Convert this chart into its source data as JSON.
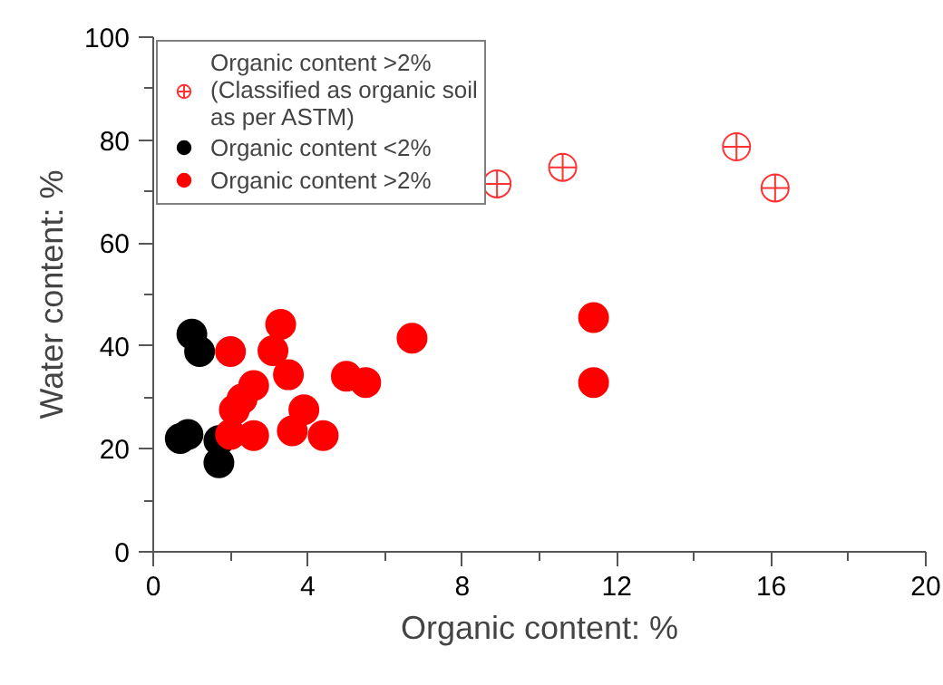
{
  "chart_data": {
    "type": "scatter",
    "xlabel": "Organic content: %",
    "ylabel": "Water content: %",
    "xlim": [
      0,
      20
    ],
    "ylim": [
      0,
      100
    ],
    "xticks": [
      0,
      {
        "value": 2,
        "label": null
      },
      4,
      {
        "value": 6,
        "label": null
      },
      8,
      {
        "value": 10,
        "label": null
      },
      12,
      {
        "value": 14,
        "label": null
      },
      16,
      {
        "value": 18,
        "label": null
      },
      20
    ],
    "yticks": [
      0,
      {
        "value": 10,
        "label": null
      },
      20,
      {
        "value": 30,
        "label": null
      },
      40,
      {
        "value": 50,
        "label": null
      },
      60,
      {
        "value": 70,
        "label": null
      },
      80,
      {
        "value": 90,
        "label": null
      },
      100
    ],
    "grid": false,
    "legend": "top left",
    "series": [
      {
        "name": "Organic content >2%\n(Classified as organic soil\nas per ASTM)",
        "color": "#ff3333",
        "marker": "circle_cross",
        "x": [
          8.9,
          10.6,
          15.1,
          16.1
        ],
        "values": [
          71.5,
          74.7,
          78.7,
          70.7
        ]
      },
      {
        "name": "Organic content <2%",
        "color": "#000000",
        "marker": "circle",
        "x": [
          1.0,
          1.2,
          0.7,
          0.9,
          1.7,
          1.7
        ],
        "values": [
          42.3,
          38.9,
          22.0,
          22.8,
          21.6,
          17.3
        ]
      },
      {
        "name": "Organic content >2%",
        "color": "#ff0000",
        "marker": "circle",
        "x": [
          2.0,
          3.1,
          3.3,
          3.5,
          5.0,
          5.5,
          6.7,
          11.4,
          11.4,
          2.6,
          2.3,
          2.1,
          2.0,
          2.6,
          3.6,
          3.9,
          4.4
        ],
        "values": [
          38.9,
          39.1,
          44.2,
          34.4,
          34.1,
          32.9,
          41.5,
          45.5,
          32.9,
          32.3,
          29.7,
          27.6,
          22.8,
          22.6,
          23.5,
          27.6,
          22.6
        ]
      }
    ]
  }
}
